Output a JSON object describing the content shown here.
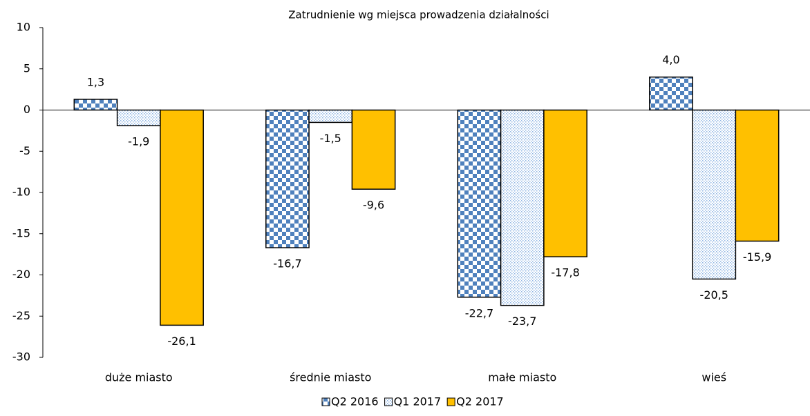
{
  "chart_data": {
    "type": "bar",
    "title": "Zatrudnienie wg miejsca prowadzenia działalności",
    "categories": [
      "duże miasto",
      "średnie miasto",
      "małe miasto",
      "wieś"
    ],
    "series": [
      {
        "name": "Q2 2016",
        "color": "#4f81bd",
        "pattern": "checker",
        "values": [
          1.3,
          -16.7,
          -22.7,
          4.0
        ],
        "value_labels": [
          "1,3",
          "-16,7",
          "-22,7",
          "4,0"
        ]
      },
      {
        "name": "Q1 2017",
        "color": "#8eb4e3",
        "pattern": "dots",
        "values": [
          -1.9,
          -1.5,
          -23.7,
          -20.5
        ],
        "value_labels": [
          "-1,9",
          "-1,5",
          "-23,7",
          "-20,5"
        ]
      },
      {
        "name": "Q2 2017",
        "color": "#ffc000",
        "pattern": "solid",
        "values": [
          -26.1,
          -9.6,
          -17.8,
          -15.9
        ],
        "value_labels": [
          "-26,1",
          "-9,6",
          "-17,8",
          "-15,9"
        ]
      }
    ],
    "ylim": [
      -30,
      10
    ],
    "yticks": [
      -30,
      -25,
      -20,
      -15,
      -10,
      -5,
      0,
      5,
      10
    ],
    "grid": false,
    "legend": "bottom"
  }
}
